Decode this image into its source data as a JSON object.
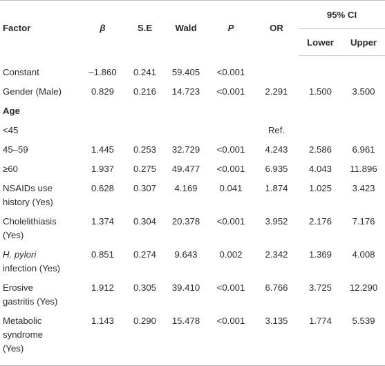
{
  "table": {
    "headers": {
      "factor": "Factor",
      "beta": "β",
      "se": "S.E",
      "wald": "Wald",
      "p": "P",
      "or": "OR",
      "ci": "95% CI",
      "lower": "Lower",
      "upper": "Upper"
    },
    "rows": [
      {
        "factor": "Constant",
        "beta": "–1.860",
        "se": "0.241",
        "wald": "59.405",
        "p": "<0.001",
        "or": "",
        "lower": "",
        "upper": ""
      },
      {
        "factor": "Gender (Male)",
        "beta": "0.829",
        "se": "0.216",
        "wald": "14.723",
        "p": "<0.001",
        "or": "2.291",
        "lower": "1.500",
        "upper": "3.500"
      },
      {
        "factor": "Age",
        "section": true
      },
      {
        "factor": "<45",
        "ref": "Ref."
      },
      {
        "factor": "45–59",
        "beta": "1.445",
        "se": "0.253",
        "wald": "32.729",
        "p": "<0.001",
        "or": "4.243",
        "lower": "2.586",
        "upper": "6.961"
      },
      {
        "factor": "≥60",
        "beta": "1.937",
        "se": "0.275",
        "wald": "49.477",
        "p": "<0.001",
        "or": "6.935",
        "lower": "4.043",
        "upper": "11.896"
      },
      {
        "factor_line1": "NSAIDs use",
        "factor_line2": "history (Yes)",
        "beta": "0.628",
        "se": "0.307",
        "wald": "4.169",
        "p": "0.041",
        "or": "1.874",
        "lower": "1.025",
        "upper": "3.423"
      },
      {
        "factor_line1": "Cholelithiasis",
        "factor_line2": "(Yes)",
        "beta": "1.374",
        "se": "0.304",
        "wald": "20.378",
        "p": "<0.001",
        "or": "3.952",
        "lower": "2.176",
        "upper": "7.176"
      },
      {
        "factor_line1_italic": "H. pylori",
        "factor_line2": "infection (Yes)",
        "beta": "0.851",
        "se": "0.274",
        "wald": "9.643",
        "p": "0.002",
        "or": "2.342",
        "lower": "1.369",
        "upper": "4.008"
      },
      {
        "factor_line1": "Erosive",
        "factor_line2": "gastritis (Yes)",
        "beta": "1.912",
        "se": "0.305",
        "wald": "39.410",
        "p": "<0.001",
        "or": "6.766",
        "lower": "3.725",
        "upper": "12.290"
      },
      {
        "factor_line1": "Metabolic",
        "factor_line2": "syndrome",
        "factor_line3": "(Yes)",
        "beta": "1.143",
        "se": "0.290",
        "wald": "15.478",
        "p": "<0.001",
        "or": "3.135",
        "lower": "1.774",
        "upper": "5.539"
      }
    ]
  }
}
